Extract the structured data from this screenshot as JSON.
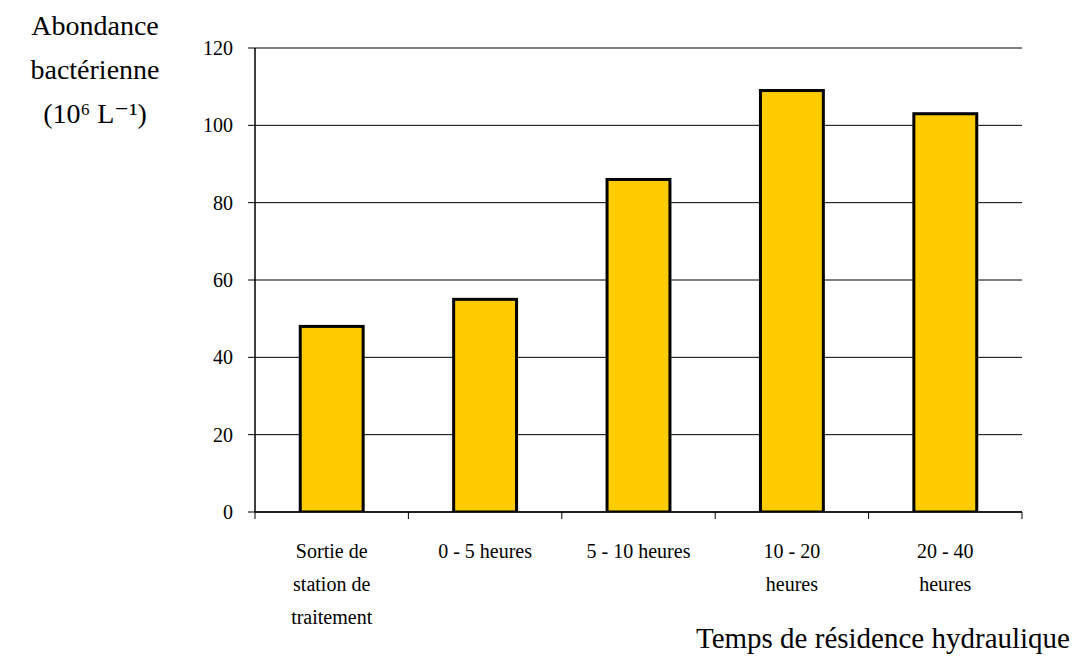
{
  "chart_data": {
    "type": "bar",
    "y_label": "Abondance\nbactérienne\n(10⁶ L⁻¹)",
    "x_label": "Temps de résidence hydraulique",
    "categories": [
      "Sortie de\nstation de\ntraitement",
      "0 - 5 heures",
      "5 - 10 heures",
      "10 - 20\nheures",
      "20 - 40\nheures"
    ],
    "values": [
      48,
      55,
      86,
      109,
      103
    ],
    "color": "#ffcc00",
    "ylim": [
      0,
      120
    ],
    "yticks": [
      0,
      20,
      40,
      60,
      80,
      100,
      120
    ],
    "grid": true
  }
}
